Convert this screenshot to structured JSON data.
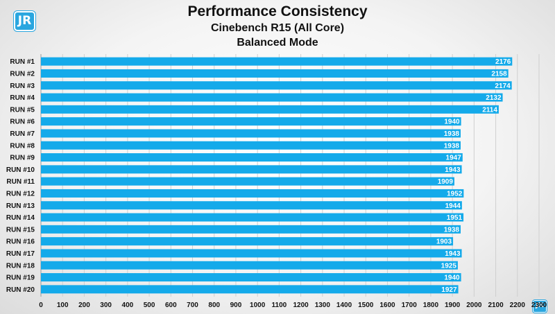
{
  "chart_data": {
    "type": "bar",
    "orientation": "horizontal",
    "title": "Performance Consistency",
    "subtitle": "Cinebench R15 (All Core)",
    "subtitle2": "Balanced Mode",
    "categories": [
      "RUN #1",
      "RUN #2",
      "RUN #3",
      "RUN #4",
      "RUN #5",
      "RUN #6",
      "RUN #7",
      "RUN #8",
      "RUN #9",
      "RUN #10",
      "RUN #11",
      "RUN #12",
      "RUN #13",
      "RUN #14",
      "RUN #15",
      "RUN #16",
      "RUN #17",
      "RUN #18",
      "RUN #19",
      "RUN #20"
    ],
    "values": [
      2176,
      2158,
      2174,
      2132,
      2114,
      1940,
      1938,
      1938,
      1947,
      1943,
      1909,
      1952,
      1944,
      1951,
      1938,
      1903,
      1943,
      1925,
      1940,
      1927
    ],
    "xlim": [
      0,
      2300
    ],
    "xticks": [
      0,
      100,
      200,
      300,
      400,
      500,
      600,
      700,
      800,
      900,
      1000,
      1100,
      1200,
      1300,
      1400,
      1500,
      1600,
      1700,
      1800,
      1900,
      2000,
      2100,
      2200,
      2300
    ],
    "grid": true,
    "data_labels": true,
    "bar_color": "#14aaea",
    "grid_color": "#cfcfcf"
  },
  "logo": {
    "text": "JR",
    "color": "#2aa6df"
  }
}
